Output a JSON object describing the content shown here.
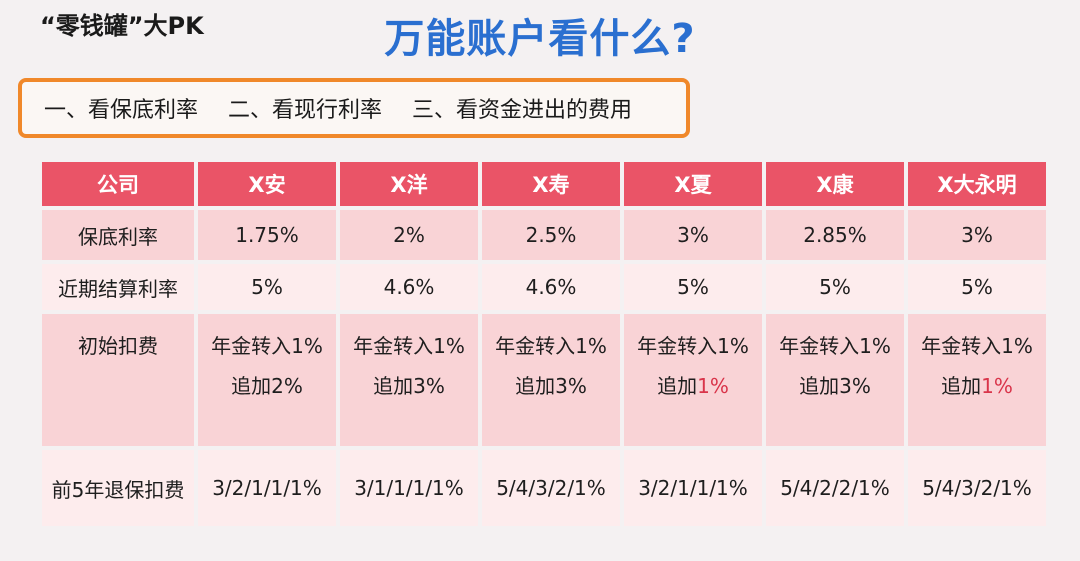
{
  "header": {
    "corner_title": "“零钱罐”大PK",
    "main_title": "万能账户看什么?"
  },
  "points": [
    "一、看保底利率",
    "二、看现行利率",
    "三、看资金进出的费用"
  ],
  "table": {
    "header": {
      "label": "公司",
      "companies": [
        "X安",
        "X洋",
        "X寿",
        "X夏",
        "X康",
        "X大永明"
      ]
    },
    "guaranteed": {
      "label": "保底利率",
      "values": [
        "1.75%",
        "2%",
        "2.5%",
        "3%",
        "2.85%",
        "3%"
      ]
    },
    "recent": {
      "label": "近期结算利率",
      "values": [
        "5%",
        "4.6%",
        "4.6%",
        "5%",
        "5%",
        "5%"
      ]
    },
    "initial_fee": {
      "label": "初始扣费",
      "line1": [
        "年金转入1%",
        "年金转入1%",
        "年金转入1%",
        "年金转入1%",
        "年金转入1%",
        "年金转入1%"
      ],
      "line2_prefix": [
        "追加",
        "追加",
        "追加",
        "追加",
        "追加",
        "追加"
      ],
      "line2_value": [
        "2%",
        "3%",
        "3%",
        "1%",
        "3%",
        "1%"
      ]
    },
    "surrender": {
      "label": "前5年退保扣费",
      "values": [
        "3/2/1/1/1%",
        "3/1/1/1/1%",
        "5/4/3/2/1%",
        "3/2/1/1/1%",
        "5/4/2/2/1%",
        "5/4/3/2/1%"
      ]
    }
  },
  "colors": {
    "title_blue": "#2a6fd0",
    "box_orange": "#f0882a",
    "header_red": "#ea5467",
    "highlight_red": "#d9344a"
  }
}
